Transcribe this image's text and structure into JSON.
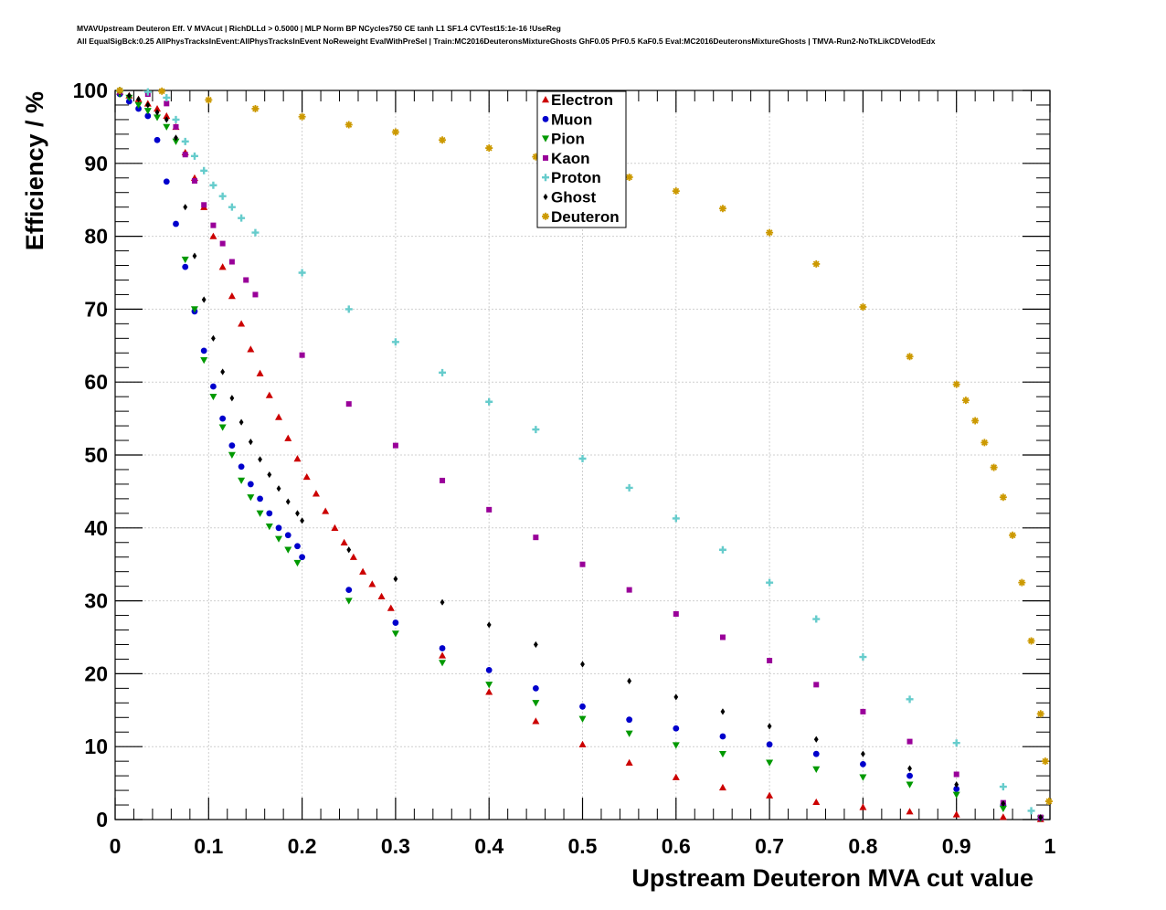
{
  "header": {
    "line1": "MVAVUpstream Deuteron Eff. V MVAcut | RichDLLd > 0.5000 | MLP Norm BP NCycles750 CE tanh L1 SF1.4 CVTest15:1e-16 !UseReg",
    "line2": "All EqualSigBck:0.25 AllPhysTracksInEvent:AllPhysTracksInEvent NoReweight EvalWithPreSel | Train:MC2016DeuteronsMixtureGhosts GhF0.05 PrF0.5 KaF0.5 Eval:MC2016DeuteronsMixtureGhosts | TMVA-Run2-NoTkLikCDVelodEdx"
  },
  "chart_data": {
    "type": "scatter",
    "title": "MVAVUpstream Deuteron Eff. V MVAcut",
    "xlabel": "Upstream Deuteron MVA cut value",
    "ylabel": "Efficiency / %",
    "xlim": [
      0,
      1
    ],
    "ylim": [
      0,
      100
    ],
    "xticks": [
      "0",
      "0.1",
      "0.2",
      "0.3",
      "0.4",
      "0.5",
      "0.6",
      "0.7",
      "0.8",
      "0.9",
      "1"
    ],
    "yticks": [
      "0",
      "10",
      "20",
      "30",
      "40",
      "50",
      "60",
      "70",
      "80",
      "90",
      "100"
    ],
    "grid": true,
    "legend_position": "top-center",
    "series": [
      {
        "name": "Electron",
        "color": "#cc0000",
        "marker": "triangle-up",
        "points": [
          [
            0.005,
            99.8
          ],
          [
            0.015,
            99.3
          ],
          [
            0.025,
            98.8
          ],
          [
            0.035,
            98.2
          ],
          [
            0.045,
            97.5
          ],
          [
            0.055,
            96.5
          ],
          [
            0.065,
            95
          ],
          [
            0.075,
            91.5
          ],
          [
            0.085,
            88
          ],
          [
            0.095,
            84
          ],
          [
            0.105,
            80
          ],
          [
            0.115,
            75.8
          ],
          [
            0.125,
            71.8
          ],
          [
            0.135,
            68
          ],
          [
            0.145,
            64.5
          ],
          [
            0.155,
            61.2
          ],
          [
            0.165,
            58.2
          ],
          [
            0.175,
            55.2
          ],
          [
            0.185,
            52.3
          ],
          [
            0.195,
            49.5
          ],
          [
            0.205,
            47
          ],
          [
            0.215,
            44.7
          ],
          [
            0.225,
            42.3
          ],
          [
            0.235,
            40
          ],
          [
            0.245,
            38
          ],
          [
            0.255,
            36
          ],
          [
            0.265,
            34
          ],
          [
            0.275,
            32.3
          ],
          [
            0.285,
            30.6
          ],
          [
            0.295,
            29
          ],
          [
            0.35,
            22.5
          ],
          [
            0.4,
            17.5
          ],
          [
            0.45,
            13.5
          ],
          [
            0.5,
            10.3
          ],
          [
            0.55,
            7.8
          ],
          [
            0.6,
            5.8
          ],
          [
            0.65,
            4.4
          ],
          [
            0.7,
            3.3
          ],
          [
            0.75,
            2.4
          ],
          [
            0.8,
            1.7
          ],
          [
            0.85,
            1.1
          ],
          [
            0.9,
            0.7
          ],
          [
            0.95,
            0.35
          ],
          [
            0.99,
            0.05
          ]
        ]
      },
      {
        "name": "Muon",
        "color": "#0000cc",
        "marker": "circle",
        "points": [
          [
            0.005,
            99.5
          ],
          [
            0.015,
            98.5
          ],
          [
            0.025,
            97.5
          ],
          [
            0.035,
            96.5
          ],
          [
            0.045,
            93.2
          ],
          [
            0.055,
            87.5
          ],
          [
            0.065,
            81.7
          ],
          [
            0.075,
            75.8
          ],
          [
            0.085,
            69.7
          ],
          [
            0.095,
            64.3
          ],
          [
            0.105,
            59.4
          ],
          [
            0.115,
            55
          ],
          [
            0.125,
            51.3
          ],
          [
            0.135,
            48.4
          ],
          [
            0.145,
            46
          ],
          [
            0.155,
            44
          ],
          [
            0.165,
            42
          ],
          [
            0.175,
            40
          ],
          [
            0.185,
            39
          ],
          [
            0.195,
            37.5
          ],
          [
            0.2,
            36
          ],
          [
            0.25,
            31.5
          ],
          [
            0.3,
            27
          ],
          [
            0.35,
            23.5
          ],
          [
            0.4,
            20.5
          ],
          [
            0.45,
            18
          ],
          [
            0.5,
            15.5
          ],
          [
            0.55,
            13.7
          ],
          [
            0.6,
            12.5
          ],
          [
            0.65,
            11.4
          ],
          [
            0.7,
            10.3
          ],
          [
            0.75,
            9
          ],
          [
            0.8,
            7.6
          ],
          [
            0.85,
            6
          ],
          [
            0.9,
            4.2
          ],
          [
            0.95,
            2
          ],
          [
            0.99,
            0.2
          ]
        ]
      },
      {
        "name": "Pion",
        "color": "#009900",
        "marker": "triangle-down",
        "points": [
          [
            0.005,
            99.5
          ],
          [
            0.015,
            99
          ],
          [
            0.025,
            98
          ],
          [
            0.035,
            97.2
          ],
          [
            0.045,
            96.3
          ],
          [
            0.055,
            95
          ],
          [
            0.065,
            93
          ],
          [
            0.075,
            76.8
          ],
          [
            0.085,
            70
          ],
          [
            0.095,
            63
          ],
          [
            0.105,
            58
          ],
          [
            0.115,
            53.8
          ],
          [
            0.125,
            50
          ],
          [
            0.135,
            46.5
          ],
          [
            0.145,
            44.2
          ],
          [
            0.155,
            42
          ],
          [
            0.165,
            40.2
          ],
          [
            0.175,
            38.5
          ],
          [
            0.185,
            37
          ],
          [
            0.195,
            35.2
          ],
          [
            0.25,
            30
          ],
          [
            0.3,
            25.5
          ],
          [
            0.35,
            21.5
          ],
          [
            0.4,
            18.5
          ],
          [
            0.45,
            16
          ],
          [
            0.5,
            13.8
          ],
          [
            0.55,
            11.8
          ],
          [
            0.6,
            10.2
          ],
          [
            0.65,
            9
          ],
          [
            0.7,
            7.8
          ],
          [
            0.75,
            6.9
          ],
          [
            0.8,
            5.8
          ],
          [
            0.85,
            4.8
          ],
          [
            0.9,
            3.4
          ],
          [
            0.95,
            1.5
          ],
          [
            0.99,
            0.15
          ]
        ]
      },
      {
        "name": "Kaon",
        "color": "#990099",
        "marker": "square",
        "points": [
          [
            0.005,
            99.8
          ],
          [
            0.035,
            99.5
          ],
          [
            0.055,
            98.2
          ],
          [
            0.065,
            95
          ],
          [
            0.075,
            91.2
          ],
          [
            0.085,
            87.6
          ],
          [
            0.095,
            84.3
          ],
          [
            0.105,
            81.5
          ],
          [
            0.115,
            79
          ],
          [
            0.125,
            76.5
          ],
          [
            0.14,
            74
          ],
          [
            0.15,
            72
          ],
          [
            0.2,
            63.7
          ],
          [
            0.25,
            57
          ],
          [
            0.3,
            51.3
          ],
          [
            0.35,
            46.5
          ],
          [
            0.4,
            42.5
          ],
          [
            0.45,
            38.7
          ],
          [
            0.5,
            35
          ],
          [
            0.55,
            31.5
          ],
          [
            0.6,
            28.2
          ],
          [
            0.65,
            25
          ],
          [
            0.7,
            21.8
          ],
          [
            0.75,
            18.5
          ],
          [
            0.8,
            14.8
          ],
          [
            0.85,
            10.7
          ],
          [
            0.9,
            6.2
          ],
          [
            0.95,
            2.3
          ],
          [
            0.99,
            0.3
          ]
        ]
      },
      {
        "name": "Proton",
        "color": "#66cccc",
        "marker": "cross",
        "points": [
          [
            0.005,
            100
          ],
          [
            0.035,
            99.8
          ],
          [
            0.055,
            99
          ],
          [
            0.065,
            96
          ],
          [
            0.075,
            93
          ],
          [
            0.085,
            91
          ],
          [
            0.095,
            89
          ],
          [
            0.105,
            87
          ],
          [
            0.115,
            85.5
          ],
          [
            0.125,
            84
          ],
          [
            0.135,
            82.5
          ],
          [
            0.15,
            80.5
          ],
          [
            0.2,
            75
          ],
          [
            0.25,
            70
          ],
          [
            0.3,
            65.5
          ],
          [
            0.35,
            61.3
          ],
          [
            0.4,
            57.3
          ],
          [
            0.45,
            53.5
          ],
          [
            0.5,
            49.5
          ],
          [
            0.55,
            45.5
          ],
          [
            0.6,
            41.3
          ],
          [
            0.65,
            37
          ],
          [
            0.7,
            32.5
          ],
          [
            0.75,
            27.5
          ],
          [
            0.8,
            22.3
          ],
          [
            0.85,
            16.5
          ],
          [
            0.9,
            10.5
          ],
          [
            0.95,
            4.5
          ],
          [
            0.98,
            1.2
          ]
        ]
      },
      {
        "name": "Ghost",
        "color": "#000000",
        "marker": "diamond",
        "points": [
          [
            0.005,
            99.8
          ],
          [
            0.015,
            99.3
          ],
          [
            0.025,
            98.8
          ],
          [
            0.035,
            98
          ],
          [
            0.045,
            97
          ],
          [
            0.055,
            96
          ],
          [
            0.065,
            93.5
          ],
          [
            0.075,
            84
          ],
          [
            0.085,
            77.3
          ],
          [
            0.095,
            71.3
          ],
          [
            0.105,
            66
          ],
          [
            0.115,
            61.4
          ],
          [
            0.125,
            57.8
          ],
          [
            0.135,
            54.5
          ],
          [
            0.145,
            51.8
          ],
          [
            0.155,
            49.4
          ],
          [
            0.165,
            47.3
          ],
          [
            0.175,
            45.4
          ],
          [
            0.185,
            43.6
          ],
          [
            0.195,
            42
          ],
          [
            0.2,
            41
          ],
          [
            0.25,
            37
          ],
          [
            0.3,
            33
          ],
          [
            0.35,
            29.8
          ],
          [
            0.4,
            26.7
          ],
          [
            0.45,
            24
          ],
          [
            0.5,
            21.3
          ],
          [
            0.55,
            19
          ],
          [
            0.6,
            16.8
          ],
          [
            0.65,
            14.8
          ],
          [
            0.7,
            12.8
          ],
          [
            0.75,
            11
          ],
          [
            0.8,
            9
          ],
          [
            0.85,
            7
          ],
          [
            0.9,
            4.8
          ],
          [
            0.95,
            2.2
          ],
          [
            0.99,
            0.3
          ]
        ]
      },
      {
        "name": "Deuteron",
        "color": "#cc9900",
        "marker": "star",
        "points": [
          [
            0.005,
            100
          ],
          [
            0.05,
            99.9
          ],
          [
            0.1,
            98.7
          ],
          [
            0.15,
            97.5
          ],
          [
            0.2,
            96.4
          ],
          [
            0.25,
            95.3
          ],
          [
            0.3,
            94.3
          ],
          [
            0.35,
            93.2
          ],
          [
            0.4,
            92.1
          ],
          [
            0.45,
            90.9
          ],
          [
            0.5,
            89.6
          ],
          [
            0.55,
            88.1
          ],
          [
            0.6,
            86.2
          ],
          [
            0.65,
            83.8
          ],
          [
            0.7,
            80.5
          ],
          [
            0.75,
            76.2
          ],
          [
            0.8,
            70.3
          ],
          [
            0.85,
            63.5
          ],
          [
            0.9,
            59.7
          ],
          [
            0.91,
            57.5
          ],
          [
            0.92,
            54.7
          ],
          [
            0.93,
            51.7
          ],
          [
            0.94,
            48.3
          ],
          [
            0.95,
            44.2
          ],
          [
            0.96,
            39
          ],
          [
            0.97,
            32.5
          ],
          [
            0.98,
            24.5
          ],
          [
            0.99,
            14.5
          ],
          [
            0.995,
            8
          ],
          [
            0.999,
            2.5
          ]
        ]
      }
    ]
  }
}
